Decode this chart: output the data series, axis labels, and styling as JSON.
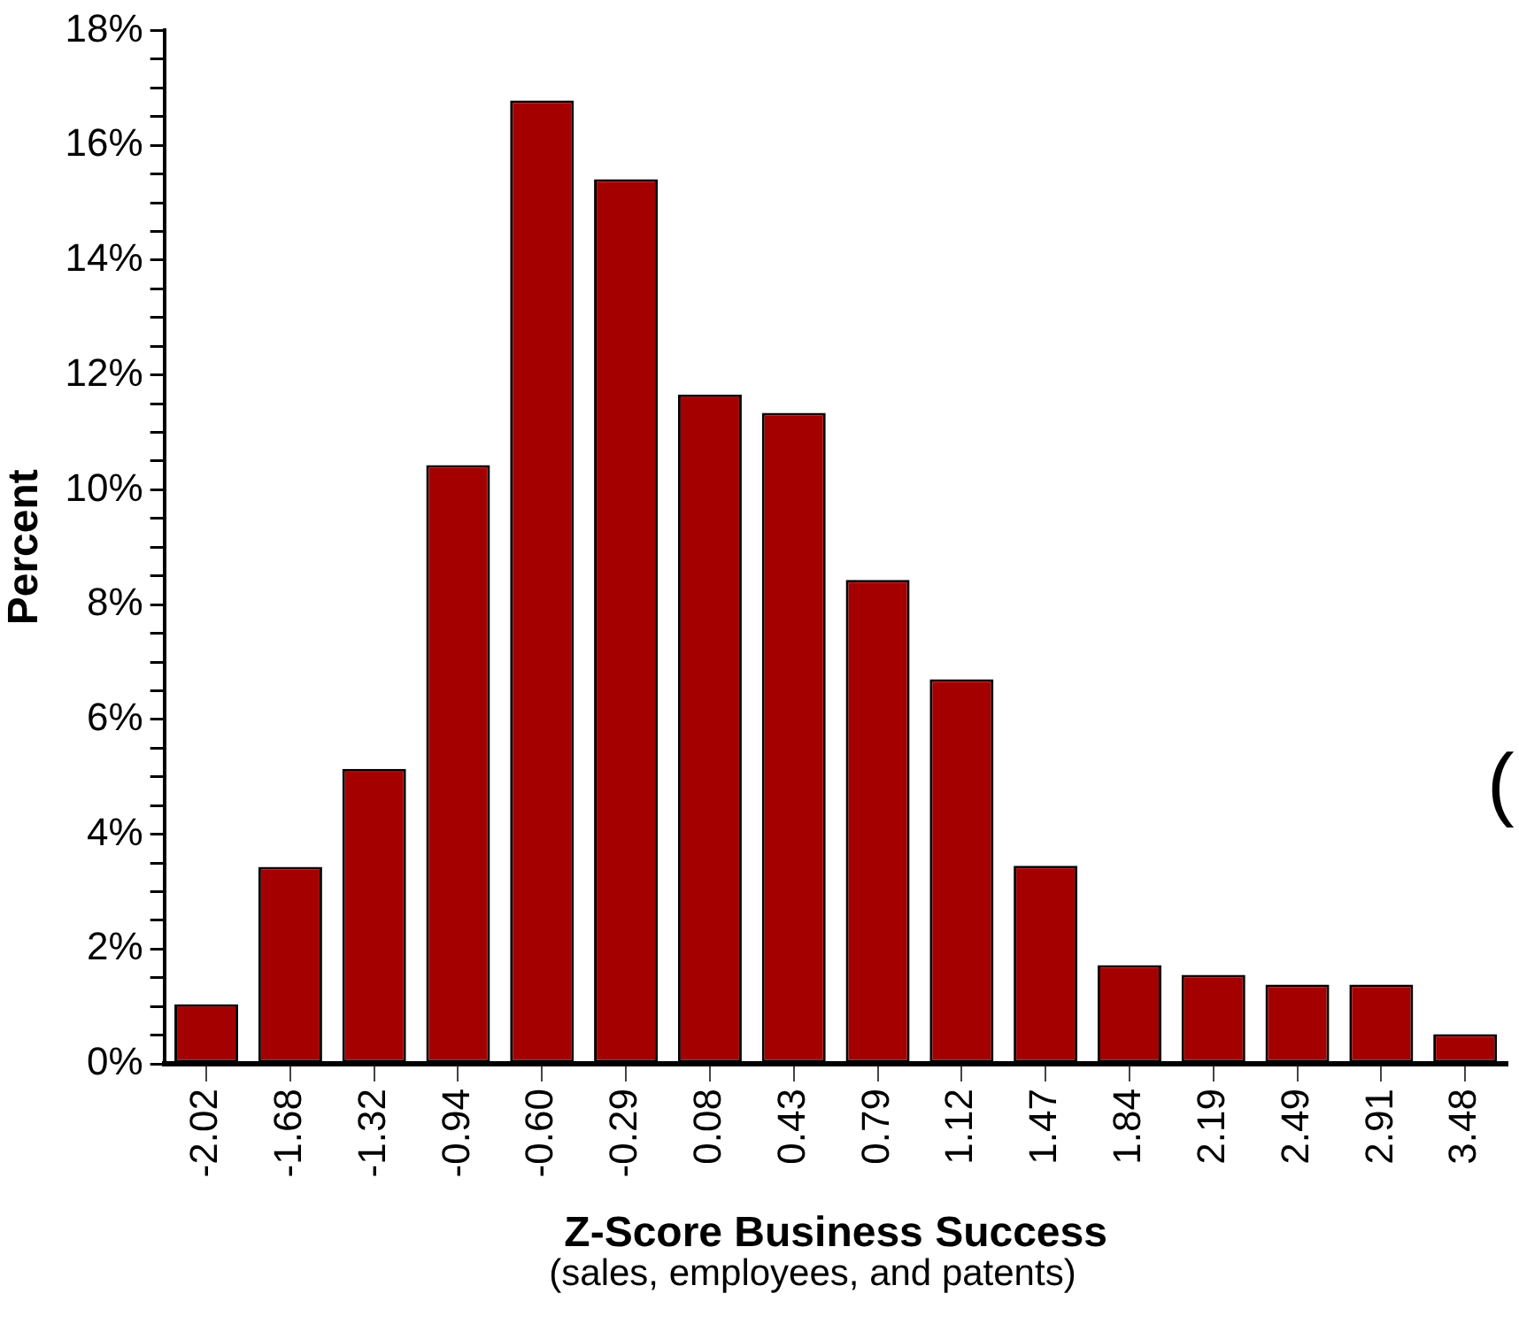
{
  "chart_data": {
    "type": "bar",
    "xlabel": "Z-Score Business Success",
    "ylabel": "Percent",
    "categories": [
      "-2.02",
      "-1.68",
      "-1.32",
      "-0.94",
      "-0.60",
      "-0.29",
      "0.08",
      "0.43",
      "0.79",
      "1.12",
      "1.47",
      "1.84",
      "2.19",
      "2.49",
      "2.91",
      "3.48"
    ],
    "values": [
      1.04,
      3.43,
      5.14,
      10.43,
      16.78,
      15.41,
      11.66,
      11.34,
      8.43,
      6.7,
      3.45,
      1.72,
      1.55,
      1.38,
      1.38,
      0.52
    ],
    "color": "#a50000",
    "ylim": [
      0,
      18
    ],
    "yticks": [
      {
        "value": 0,
        "label": "0%"
      },
      {
        "value": 0.5,
        "label": null
      },
      {
        "value": 1,
        "label": null
      },
      {
        "value": 1.5,
        "label": null
      },
      {
        "value": 2,
        "label": "2%"
      },
      {
        "value": 2.5,
        "label": null
      },
      {
        "value": 3,
        "label": null
      },
      {
        "value": 3.5,
        "label": null
      },
      {
        "value": 4,
        "label": "4%"
      },
      {
        "value": 4.5,
        "label": null
      },
      {
        "value": 5,
        "label": null
      },
      {
        "value": 5.5,
        "label": null
      },
      {
        "value": 6,
        "label": "6%"
      },
      {
        "value": 6.5,
        "label": null
      },
      {
        "value": 7,
        "label": null
      },
      {
        "value": 7.5,
        "label": null
      },
      {
        "value": 8,
        "label": "8%"
      },
      {
        "value": 8.5,
        "label": null
      },
      {
        "value": 9,
        "label": null
      },
      {
        "value": 9.5,
        "label": null
      },
      {
        "value": 10,
        "label": "10%"
      },
      {
        "value": 10.5,
        "label": null
      },
      {
        "value": 11,
        "label": null
      },
      {
        "value": 11.5,
        "label": null
      },
      {
        "value": 12,
        "label": "12%"
      },
      {
        "value": 12.5,
        "label": null
      },
      {
        "value": 13,
        "label": null
      },
      {
        "value": 13.5,
        "label": null
      },
      {
        "value": 14,
        "label": "14%"
      },
      {
        "value": 14.5,
        "label": null
      },
      {
        "value": 15,
        "label": null
      },
      {
        "value": 15.5,
        "label": null
      },
      {
        "value": 16,
        "label": "16%"
      },
      {
        "value": 16.5,
        "label": null
      },
      {
        "value": 17,
        "label": null
      },
      {
        "value": 17.5,
        "label": null
      },
      {
        "value": 18,
        "label": "18%"
      }
    ],
    "grid": false,
    "legend": false,
    "annotations": [
      "(sales, employees, and patents)",
      "("
    ]
  }
}
